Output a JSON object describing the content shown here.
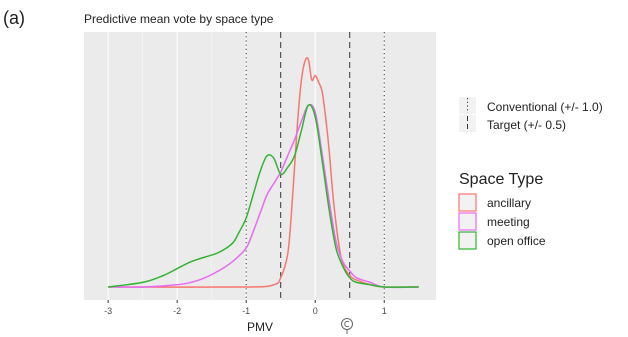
{
  "panel_label": "(a)",
  "chart_data": {
    "type": "line",
    "title": "Predictive mean vote by space type",
    "xlabel": "PMV",
    "ylabel": "",
    "xlim": [
      -3.35,
      1.75
    ],
    "ylim": [
      0,
      1.0
    ],
    "x_ticks": [
      -3,
      -2,
      -1,
      0,
      1
    ],
    "x_tick_labels": [
      "-3",
      "-2",
      "-1",
      "0",
      "1"
    ],
    "grid": true,
    "legend_position": "right",
    "reference_lines": {
      "title": "",
      "lines": [
        {
          "label": "Conventional (+/- 1.0)",
          "style": "dotted",
          "x": [
            -1.0,
            1.0
          ]
        },
        {
          "label": "Target (+/- 0.5)",
          "style": "dashed",
          "x": [
            -0.5,
            0.5
          ]
        }
      ]
    },
    "legend_title": "Space Type",
    "series": [
      {
        "name": "ancillary",
        "color": "#F8766D",
        "x": [
          -3.0,
          -1.0,
          -0.6,
          -0.5,
          -0.4,
          -0.35,
          -0.3,
          -0.25,
          -0.2,
          -0.15,
          -0.1,
          -0.05,
          0.0,
          0.05,
          0.1,
          0.15,
          0.2,
          0.25,
          0.3,
          0.35,
          0.4,
          0.5,
          0.6,
          0.8,
          1.0,
          1.5
        ],
        "y": [
          0.0,
          0.0,
          0.01,
          0.04,
          0.14,
          0.3,
          0.52,
          0.74,
          0.9,
          0.98,
          0.99,
          0.9,
          0.92,
          0.89,
          0.85,
          0.74,
          0.6,
          0.42,
          0.28,
          0.17,
          0.1,
          0.05,
          0.03,
          0.01,
          0.0,
          0.0
        ]
      },
      {
        "name": "meeting",
        "color": "#E76BF3",
        "x": [
          -3.0,
          -2.5,
          -2.0,
          -1.8,
          -1.6,
          -1.4,
          -1.2,
          -1.0,
          -0.9,
          -0.8,
          -0.7,
          -0.6,
          -0.5,
          -0.4,
          -0.3,
          -0.2,
          -0.1,
          0.0,
          0.1,
          0.2,
          0.3,
          0.4,
          0.5,
          0.6,
          0.8,
          1.0,
          1.5
        ],
        "y": [
          0.0,
          0.0,
          0.01,
          0.02,
          0.04,
          0.07,
          0.11,
          0.17,
          0.24,
          0.32,
          0.4,
          0.45,
          0.5,
          0.57,
          0.64,
          0.72,
          0.79,
          0.76,
          0.58,
          0.38,
          0.2,
          0.11,
          0.07,
          0.04,
          0.02,
          0.0,
          0.0
        ]
      },
      {
        "name": "open office",
        "color": "#31B432",
        "x": [
          -3.0,
          -2.5,
          -2.2,
          -2.0,
          -1.8,
          -1.6,
          -1.4,
          -1.2,
          -1.1,
          -1.0,
          -0.9,
          -0.8,
          -0.7,
          -0.6,
          -0.5,
          -0.4,
          -0.3,
          -0.2,
          -0.1,
          0.0,
          0.1,
          0.2,
          0.3,
          0.4,
          0.5,
          0.6,
          0.8,
          1.0,
          1.5
        ],
        "y": [
          0.0,
          0.02,
          0.05,
          0.08,
          0.11,
          0.13,
          0.15,
          0.19,
          0.24,
          0.3,
          0.4,
          0.5,
          0.57,
          0.56,
          0.49,
          0.52,
          0.57,
          0.68,
          0.79,
          0.74,
          0.55,
          0.34,
          0.17,
          0.09,
          0.04,
          0.02,
          0.01,
          0.0,
          0.0
        ]
      }
    ]
  },
  "footer_icon": "copyright-icon"
}
